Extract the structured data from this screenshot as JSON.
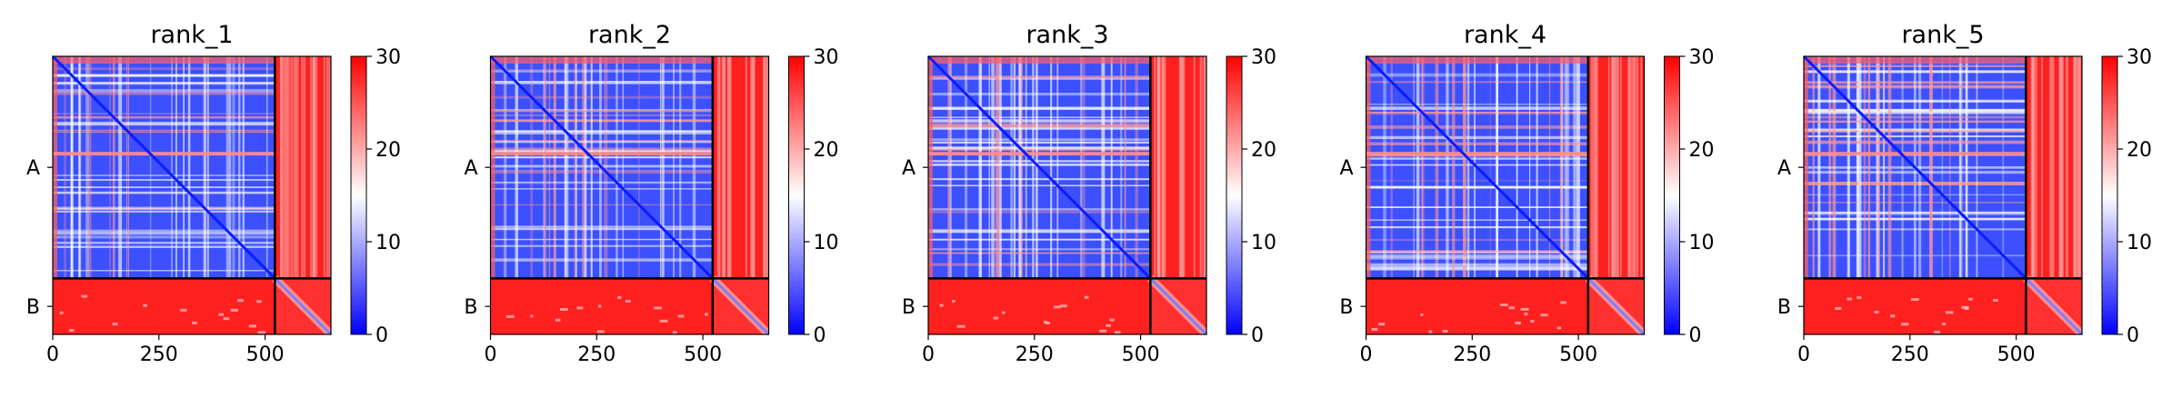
{
  "chart_data": [
    {
      "type": "heatmap",
      "title": "rank_1",
      "chains": [
        "A",
        "B"
      ],
      "chain_boundary": 523,
      "sequence_length": 655,
      "x_ticks": [
        "0",
        "250",
        "500"
      ],
      "x_tick_values": [
        0,
        250,
        500
      ],
      "colorbar": {
        "min": 0,
        "max": 30,
        "ticks": [
          "0",
          "10",
          "20",
          "30"
        ],
        "tick_values": [
          0,
          10,
          20,
          30
        ],
        "colors": [
          "#0000ff",
          "#ffffff",
          "#ff0000"
        ]
      }
    },
    {
      "type": "heatmap",
      "title": "rank_2",
      "chains": [
        "A",
        "B"
      ],
      "chain_boundary": 523,
      "sequence_length": 655,
      "x_ticks": [
        "0",
        "250",
        "500"
      ],
      "x_tick_values": [
        0,
        250,
        500
      ],
      "colorbar": {
        "min": 0,
        "max": 30,
        "ticks": [
          "0",
          "10",
          "20",
          "30"
        ],
        "tick_values": [
          0,
          10,
          20,
          30
        ],
        "colors": [
          "#0000ff",
          "#ffffff",
          "#ff0000"
        ]
      }
    },
    {
      "type": "heatmap",
      "title": "rank_3",
      "chains": [
        "A",
        "B"
      ],
      "chain_boundary": 523,
      "sequence_length": 655,
      "x_ticks": [
        "0",
        "250",
        "500"
      ],
      "x_tick_values": [
        0,
        250,
        500
      ],
      "colorbar": {
        "min": 0,
        "max": 30,
        "ticks": [
          "0",
          "10",
          "20",
          "30"
        ],
        "tick_values": [
          0,
          10,
          20,
          30
        ],
        "colors": [
          "#0000ff",
          "#ffffff",
          "#ff0000"
        ]
      }
    },
    {
      "type": "heatmap",
      "title": "rank_4",
      "chains": [
        "A",
        "B"
      ],
      "chain_boundary": 523,
      "sequence_length": 655,
      "x_ticks": [
        "0",
        "250",
        "500"
      ],
      "x_tick_values": [
        0,
        250,
        500
      ],
      "colorbar": {
        "min": 0,
        "max": 30,
        "ticks": [
          "0",
          "10",
          "20",
          "30"
        ],
        "tick_values": [
          0,
          10,
          20,
          30
        ],
        "colors": [
          "#0000ff",
          "#ffffff",
          "#ff0000"
        ]
      }
    },
    {
      "type": "heatmap",
      "title": "rank_5",
      "chains": [
        "A",
        "B"
      ],
      "chain_boundary": 523,
      "sequence_length": 655,
      "x_ticks": [
        "0",
        "250",
        "500"
      ],
      "x_tick_values": [
        0,
        250,
        500
      ],
      "colorbar": {
        "min": 0,
        "max": 30,
        "ticks": [
          "0",
          "10",
          "20",
          "30"
        ],
        "tick_values": [
          0,
          10,
          20,
          30
        ],
        "colors": [
          "#0000ff",
          "#ffffff",
          "#ff0000"
        ]
      }
    }
  ]
}
